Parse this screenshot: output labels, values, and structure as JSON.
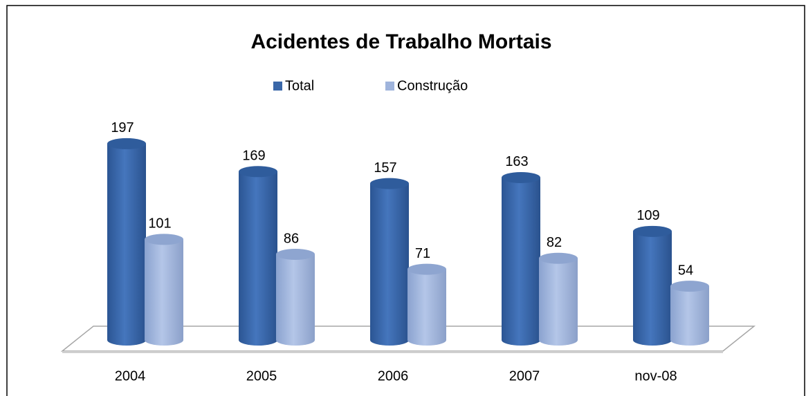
{
  "chart_data": {
    "type": "bar3d",
    "title": "Acidentes de Trabalho Mortais",
    "categories": [
      "2004",
      "2005",
      "2006",
      "2007",
      "nov-08"
    ],
    "series": [
      {
        "name": "Total",
        "color": "#3a67a8",
        "values": [
          197,
          169,
          157,
          163,
          109
        ]
      },
      {
        "name": "Construção",
        "color": "#9fb4dc",
        "values": [
          101,
          86,
          71,
          82,
          54
        ]
      }
    ],
    "legend": "top"
  }
}
